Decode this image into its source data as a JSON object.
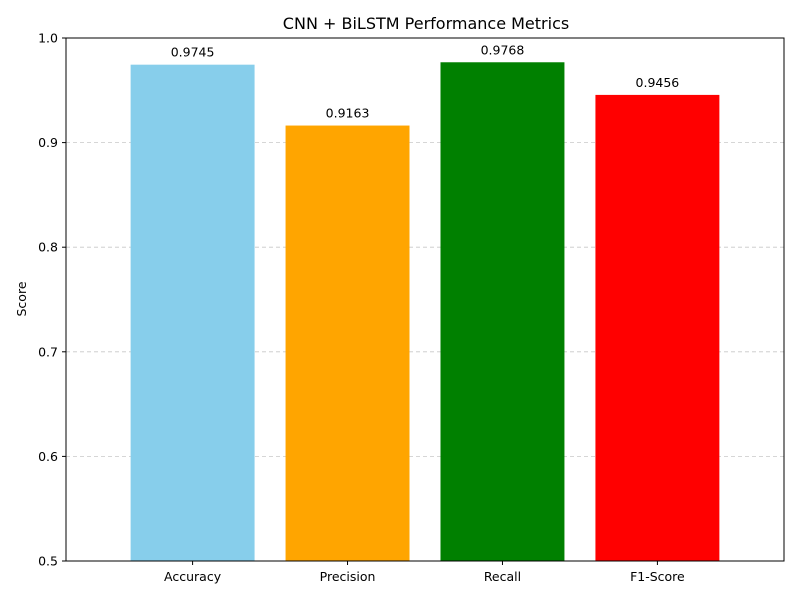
{
  "chart_data": {
    "type": "bar",
    "title": "CNN + BiLSTM Performance Metrics",
    "xlabel": "",
    "ylabel": "Score",
    "categories": [
      "Accuracy",
      "Precision",
      "Recall",
      "F1-Score"
    ],
    "values": [
      0.9745,
      0.9163,
      0.9768,
      0.9456
    ],
    "value_labels": [
      "0.9745",
      "0.9163",
      "0.9768",
      "0.9456"
    ],
    "colors": [
      "#87ceeb",
      "#ffa500",
      "#008000",
      "#ff0000"
    ],
    "ylim": [
      0.5,
      1.0
    ],
    "yticks": [
      0.5,
      0.6,
      0.7,
      0.8,
      0.9,
      1.0
    ],
    "ytick_labels": [
      "0.5",
      "0.6",
      "0.7",
      "0.8",
      "0.9",
      "1.0"
    ],
    "grid": "y-dashed",
    "legend": "none"
  }
}
